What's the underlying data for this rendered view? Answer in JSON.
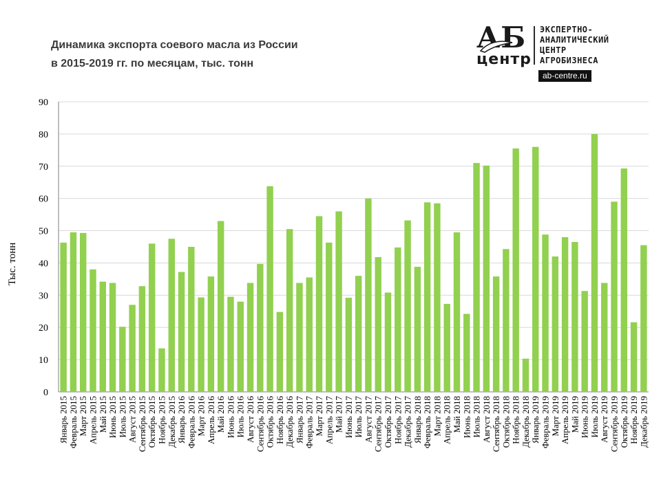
{
  "title": {
    "line1": "Динамика экспорта соевого масла из России",
    "line2": "в 2015-2019 гг. по месяцам, тыс. тонн"
  },
  "logo": {
    "mark_top": "АБ",
    "mark_bottom": "центр",
    "lines": [
      "ЭКСПЕРТНО-",
      "АНАЛИТИЧЕСКИЙ",
      "ЦЕНТР",
      "АГРОБИЗНЕСА"
    ],
    "url": "ab-centre.ru"
  },
  "colors": {
    "bar": "#92d050",
    "grid": "#d9d9d9",
    "axis": "#7f7f7f",
    "text": "#000000"
  },
  "chart_data": {
    "type": "bar",
    "ylabel": "Тыс. тонн",
    "ylim": [
      0,
      90
    ],
    "yticks": [
      0,
      10,
      20,
      30,
      40,
      50,
      60,
      70,
      80,
      90
    ],
    "grid": true,
    "categories": [
      "Январь 2015",
      "Февраль 2015",
      "Март 2015",
      "Апрель 2015",
      "Май 2015",
      "Июнь 2015",
      "Июль 2015",
      "Август 2015",
      "Сентябрь 2015",
      "Октябрь 2015",
      "Ноябрь 2015",
      "Декабрь 2015",
      "Январь 2016",
      "Февраль 2016",
      "Март 2016",
      "Апрель 2016",
      "Май 2016",
      "Июнь 2016",
      "Июль 2016",
      "Август 2016",
      "Сентябрь 2016",
      "Октябрь 2016",
      "Ноябрь 2016",
      "Декабрь 2016",
      "Январь 2017",
      "Февраль 2017",
      "Март 2017",
      "Апрель 2017",
      "Май 2017",
      "Июнь 2017",
      "Июль 2017",
      "Август 2017",
      "Сентябрь 2017",
      "Октябрь 2017",
      "Ноябрь 2017",
      "Декабрь 2017",
      "Январь 2018",
      "Февраль 2018",
      "Март 2018",
      "Апрель 2018",
      "Май 2018",
      "Июнь 2018",
      "Июль 2018",
      "Август 2018",
      "Сентябрь 2018",
      "Октябрь 2018",
      "Ноябрь 2018",
      "Декабрь 2018",
      "Январь 2019",
      "Февраль 2019",
      "Март 2019",
      "Апрель 2019",
      "Май 2019",
      "Июнь 2019",
      "Июль 2019",
      "Август 2019",
      "Сентябрь 2019",
      "Октябрь 2019",
      "Ноябрь 2019",
      "Декабрь 2019"
    ],
    "values": [
      46.3,
      49.5,
      49.3,
      38.0,
      34.2,
      33.8,
      20.2,
      27.0,
      32.8,
      46.0,
      13.5,
      47.5,
      37.2,
      45.0,
      29.3,
      35.8,
      53.0,
      29.5,
      28.0,
      33.8,
      39.7,
      63.8,
      24.8,
      50.5,
      33.8,
      35.5,
      54.5,
      46.3,
      56.0,
      29.2,
      36.0,
      60.0,
      41.8,
      30.8,
      44.8,
      53.2,
      38.8,
      58.8,
      58.5,
      27.3,
      49.5,
      24.2,
      71.0,
      70.2,
      35.8,
      44.3,
      75.5,
      10.3,
      76.0,
      48.8,
      42.0,
      48.0,
      46.5,
      31.3,
      80.0,
      33.8,
      59.0,
      69.3,
      21.6,
      45.5
    ]
  }
}
